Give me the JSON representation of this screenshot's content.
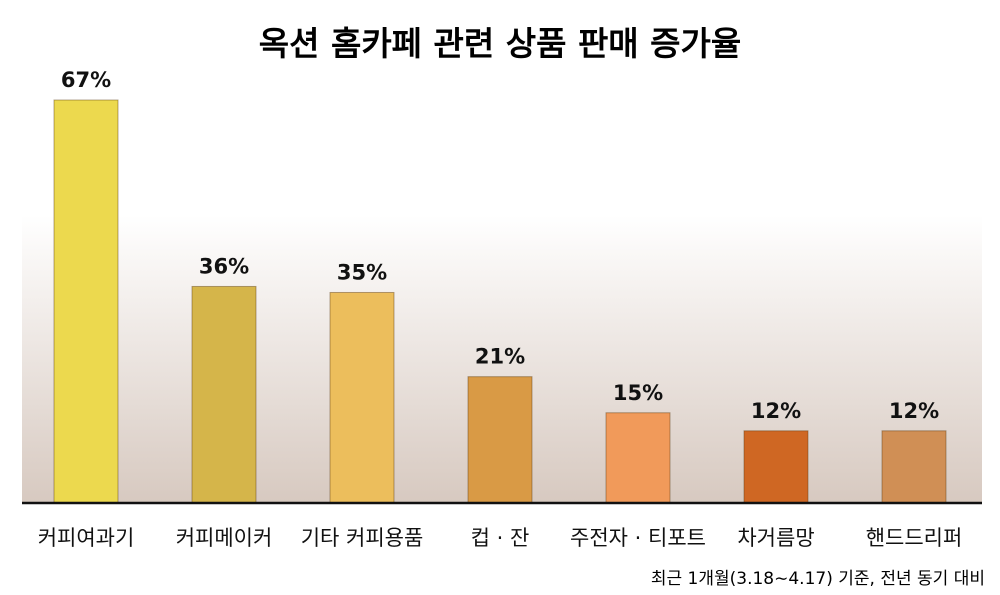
{
  "chart_data": {
    "type": "bar",
    "title": "옥션 홈카페 관련 상품 판매 증가율",
    "categories": [
      "커피여과기",
      "커피메이커",
      "기타 커피용품",
      "컵 · 잔",
      "주전자 · 티포트",
      "차거름망",
      "핸드드리퍼"
    ],
    "values": [
      67,
      36,
      35,
      21,
      15,
      12,
      12
    ],
    "value_labels": [
      "67%",
      "36%",
      "35%",
      "21%",
      "15%",
      "12%",
      "12%"
    ],
    "unit": "%",
    "ylim": [
      0,
      70
    ],
    "grid": false,
    "legend": "none",
    "colors": [
      "#ecd94e",
      "#d5b54a",
      "#ecbe5c",
      "#d99a45",
      "#f19a5a",
      "#cf6723",
      "#d08f55"
    ],
    "note": "최근 1개월(3.18∼4.17) 기준, 전년 동기 대비"
  },
  "style": {
    "background_top": "#ffffff",
    "background_bottom": "#d7c9c0",
    "axis_color": "#111111",
    "text_color": "#111111"
  }
}
